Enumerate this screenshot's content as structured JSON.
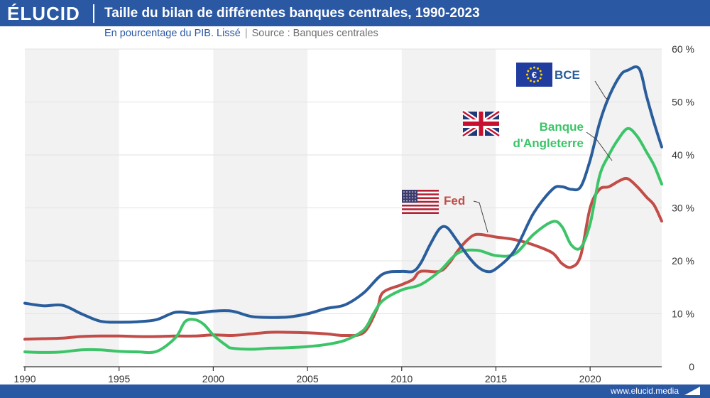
{
  "header": {
    "logo": "ÉLUCID",
    "title": "Taille du bilan de différentes banques centrales, 1990-2023",
    "subtitle_main": "En pourcentage du PIB. Lissé",
    "subtitle_source": "Source : Banques centrales"
  },
  "footer": {
    "url": "www.elucid.media"
  },
  "colors": {
    "brand": "#2b58a3",
    "bce": "#2a5d9b",
    "boe": "#3cc468",
    "fed": "#c24c47",
    "band": "#f2f2f2"
  },
  "chart_data": {
    "type": "line",
    "title": "Taille du bilan de différentes banques centrales, 1990-2023",
    "subtitle": "En pourcentage du PIB. Lissé",
    "xlim": [
      1990,
      2023.8
    ],
    "ylim": [
      0,
      60
    ],
    "x_ticks": [
      1990,
      1995,
      2000,
      2005,
      2010,
      2015,
      2020
    ],
    "y_ticks": [
      0,
      10,
      20,
      30,
      40,
      50,
      60
    ],
    "y_tick_labels": [
      "0",
      "10 %",
      "20 %",
      "30 %",
      "40 %",
      "50 %",
      "60 %"
    ],
    "x_tick_labels": [
      "1990",
      "1995",
      "2000",
      "2005",
      "2010",
      "2015",
      "2020"
    ],
    "alternating_background_bands": true,
    "series": [
      {
        "name": "BCE",
        "color": "#2a5d9b",
        "points": [
          [
            1990,
            12
          ],
          [
            1991,
            11.5
          ],
          [
            1992,
            11.6
          ],
          [
            1993,
            10
          ],
          [
            1994,
            8.6
          ],
          [
            1995,
            8.4
          ],
          [
            1996,
            8.5
          ],
          [
            1997,
            8.9
          ],
          [
            1998,
            10.3
          ],
          [
            1999,
            10.1
          ],
          [
            2000,
            10.5
          ],
          [
            2001,
            10.5
          ],
          [
            2002,
            9.5
          ],
          [
            2003,
            9.3
          ],
          [
            2004,
            9.4
          ],
          [
            2005,
            10
          ],
          [
            2006,
            11
          ],
          [
            2007,
            11.7
          ],
          [
            2008,
            14
          ],
          [
            2009,
            17.5
          ],
          [
            2010,
            18
          ],
          [
            2010.6,
            18
          ],
          [
            2011,
            19.5
          ],
          [
            2011.5,
            23
          ],
          [
            2012,
            26
          ],
          [
            2012.4,
            26.3
          ],
          [
            2012.9,
            24
          ],
          [
            2013.5,
            21
          ],
          [
            2014,
            19
          ],
          [
            2014.5,
            18
          ],
          [
            2015,
            18.5
          ],
          [
            2016,
            22
          ],
          [
            2017,
            29
          ],
          [
            2018,
            33.5
          ],
          [
            2018.5,
            34
          ],
          [
            2019,
            33.5
          ],
          [
            2019.5,
            34
          ],
          [
            2020,
            39
          ],
          [
            2020.5,
            46
          ],
          [
            2021,
            51
          ],
          [
            2021.6,
            55
          ],
          [
            2022,
            56
          ],
          [
            2022.6,
            56.3
          ],
          [
            2023,
            51
          ],
          [
            2023.4,
            46
          ],
          [
            2023.8,
            41.5
          ]
        ]
      },
      {
        "name": "Banque d'Angleterre",
        "label_lines": [
          "Banque",
          "d'Angleterre"
        ],
        "color": "#3cc468",
        "points": [
          [
            1990,
            2.8
          ],
          [
            1991,
            2.7
          ],
          [
            1992,
            2.8
          ],
          [
            1993,
            3.2
          ],
          [
            1994,
            3.2
          ],
          [
            1995,
            2.9
          ],
          [
            1996,
            2.8
          ],
          [
            1997,
            2.9
          ],
          [
            1998,
            5.5
          ],
          [
            1998.5,
            8.5
          ],
          [
            1999,
            8.9
          ],
          [
            1999.5,
            8
          ],
          [
            2000,
            6
          ],
          [
            2000.7,
            4
          ],
          [
            2001,
            3.5
          ],
          [
            2002,
            3.3
          ],
          [
            2003,
            3.5
          ],
          [
            2004,
            3.6
          ],
          [
            2005,
            3.8
          ],
          [
            2006,
            4.2
          ],
          [
            2007,
            5
          ],
          [
            2008,
            7
          ],
          [
            2008.5,
            10
          ],
          [
            2009,
            12.5
          ],
          [
            2010,
            14.5
          ],
          [
            2011,
            15.5
          ],
          [
            2012,
            18
          ],
          [
            2013,
            21.5
          ],
          [
            2014,
            22
          ],
          [
            2015,
            21
          ],
          [
            2016,
            21.3
          ],
          [
            2017,
            25
          ],
          [
            2018,
            27.4
          ],
          [
            2018.5,
            26.5
          ],
          [
            2019,
            23
          ],
          [
            2019.5,
            22.5
          ],
          [
            2020,
            27
          ],
          [
            2020.5,
            36
          ],
          [
            2021,
            40
          ],
          [
            2021.5,
            43
          ],
          [
            2022,
            45
          ],
          [
            2022.5,
            43.5
          ],
          [
            2023,
            40.5
          ],
          [
            2023.4,
            38
          ],
          [
            2023.8,
            34.5
          ]
        ]
      },
      {
        "name": "Fed",
        "color": "#c24c47",
        "points": [
          [
            1990,
            5.2
          ],
          [
            1991,
            5.3
          ],
          [
            1992,
            5.4
          ],
          [
            1993,
            5.7
          ],
          [
            1994,
            5.8
          ],
          [
            1995,
            5.8
          ],
          [
            1996,
            5.7
          ],
          [
            1997,
            5.7
          ],
          [
            1998,
            5.8
          ],
          [
            1999,
            5.8
          ],
          [
            2000,
            6
          ],
          [
            2001,
            5.9
          ],
          [
            2002,
            6.2
          ],
          [
            2003,
            6.5
          ],
          [
            2004,
            6.5
          ],
          [
            2005,
            6.4
          ],
          [
            2006,
            6.2
          ],
          [
            2007,
            5.9
          ],
          [
            2008,
            6.5
          ],
          [
            2008.7,
            11
          ],
          [
            2009,
            14
          ],
          [
            2010,
            15.5
          ],
          [
            2010.6,
            16.5
          ],
          [
            2011,
            18
          ],
          [
            2012,
            18
          ],
          [
            2012.5,
            19.5
          ],
          [
            2013,
            22
          ],
          [
            2013.5,
            24
          ],
          [
            2014,
            25
          ],
          [
            2015,
            24.5
          ],
          [
            2016,
            24
          ],
          [
            2017,
            23
          ],
          [
            2018,
            21.5
          ],
          [
            2018.5,
            19.5
          ],
          [
            2019,
            18.8
          ],
          [
            2019.5,
            21
          ],
          [
            2020,
            30
          ],
          [
            2020.5,
            33.5
          ],
          [
            2021,
            34
          ],
          [
            2021.6,
            35.2
          ],
          [
            2022,
            35.5
          ],
          [
            2022.5,
            34
          ],
          [
            2023,
            32
          ],
          [
            2023.4,
            30.5
          ],
          [
            2023.8,
            27.5
          ]
        ]
      }
    ]
  }
}
